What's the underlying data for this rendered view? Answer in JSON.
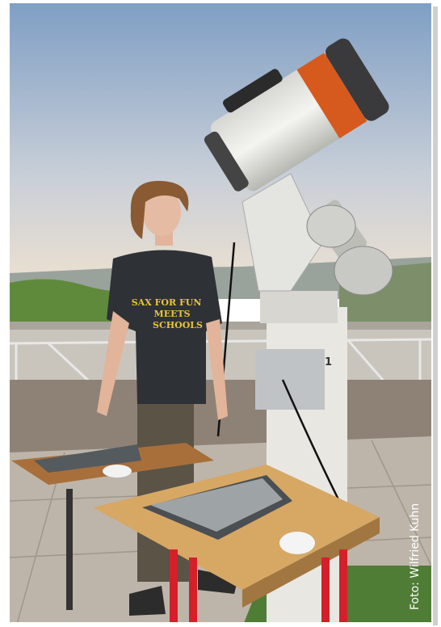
{
  "shirt_text": [
    "SAX FOR FUN",
    "MEETS",
    "SCHOOLS"
  ],
  "pier_number": "1",
  "credit": "Foto: Wilfried Kuhn"
}
